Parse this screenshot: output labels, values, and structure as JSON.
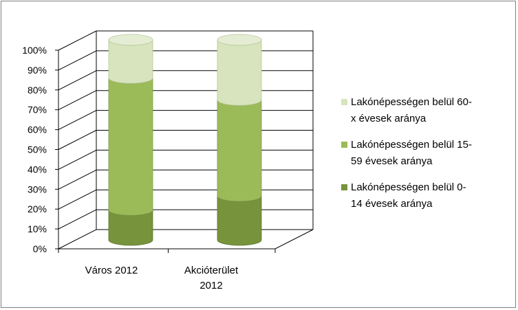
{
  "chart_data": {
    "type": "bar",
    "subtype": "stacked-100-percent-3d-cylinder",
    "categories": [
      [
        "Város 2012"
      ],
      [
        "Akcióterület",
        "2012"
      ]
    ],
    "y_ticks": [
      "0%",
      "10%",
      "20%",
      "30%",
      "40%",
      "50%",
      "60%",
      "70%",
      "80%",
      "90%",
      "100%"
    ],
    "ylim": [
      0,
      100
    ],
    "grid": true,
    "legend_position": "right",
    "series": [
      {
        "name": "Lakónépességen belül 0-14 évesek aránya",
        "legend_lines": [
          "Lakónépességen belül 0-",
          "14 évesek aránya"
        ],
        "values": [
          15,
          22
        ],
        "color": "#77933c"
      },
      {
        "name": "Lakónépességen belül 15-59 évesek aránya",
        "legend_lines": [
          "Lakónépességen belül 15-",
          "59 évesek aránya"
        ],
        "values": [
          66,
          48
        ],
        "color": "#9bbb59"
      },
      {
        "name": "Lakónépességen belül 60-x évesek aránya",
        "legend_lines": [
          "Lakónépességen belül 60-",
          "x évesek aránya"
        ],
        "values": [
          19,
          30
        ],
        "color": "#d7e4bd"
      }
    ]
  }
}
